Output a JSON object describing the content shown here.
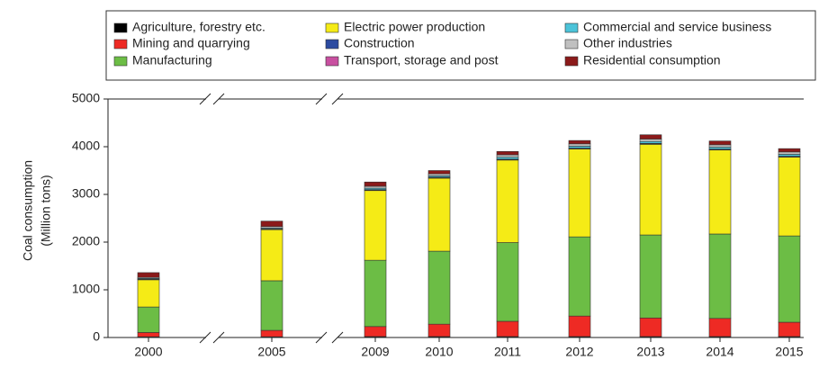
{
  "chart_data": {
    "type": "stacked-bar",
    "ylabel": [
      "Coal consumption",
      "(Million tons)"
    ],
    "categories": [
      "2000",
      "2005",
      "2009",
      "2010",
      "2011",
      "2012",
      "2013",
      "2014",
      "2015"
    ],
    "series": [
      {
        "name": "Agriculture, forestry etc.",
        "color": "#000000",
        "values": [
          15,
          15,
          20,
          20,
          20,
          20,
          20,
          20,
          20
        ]
      },
      {
        "name": "Mining and quarrying",
        "color": "#ee2a24",
        "values": [
          90,
          135,
          210,
          260,
          320,
          430,
          390,
          380,
          300
        ]
      },
      {
        "name": "Manufacturing",
        "color": "#6cbd45",
        "values": [
          535,
          1040,
          1390,
          1530,
          1650,
          1660,
          1740,
          1770,
          1810
        ]
      },
      {
        "name": "Electric power production",
        "color": "#f5eb16",
        "values": [
          570,
          1070,
          1460,
          1530,
          1730,
          1840,
          1900,
          1760,
          1650
        ]
      },
      {
        "name": "Construction",
        "color": "#2c4ba0",
        "values": [
          10,
          10,
          10,
          10,
          10,
          10,
          10,
          10,
          10
        ]
      },
      {
        "name": "Transport, storage and post",
        "color": "#c84fa0",
        "values": [
          5,
          5,
          10,
          10,
          10,
          10,
          10,
          10,
          10
        ]
      },
      {
        "name": "Commercial and service business",
        "color": "#4cc3d9",
        "values": [
          15,
          20,
          30,
          30,
          40,
          40,
          40,
          40,
          40
        ]
      },
      {
        "name": "Other industries",
        "color": "#c0c0c0",
        "values": [
          20,
          30,
          40,
          40,
          50,
          50,
          50,
          50,
          50
        ]
      },
      {
        "name": "Residential consumption",
        "color": "#8b1a1a",
        "values": [
          100,
          115,
          90,
          70,
          70,
          70,
          90,
          80,
          70
        ]
      }
    ],
    "ylim": [
      0,
      5000
    ],
    "yticks": [
      0,
      1000,
      2000,
      3000,
      4000,
      5000
    ]
  }
}
